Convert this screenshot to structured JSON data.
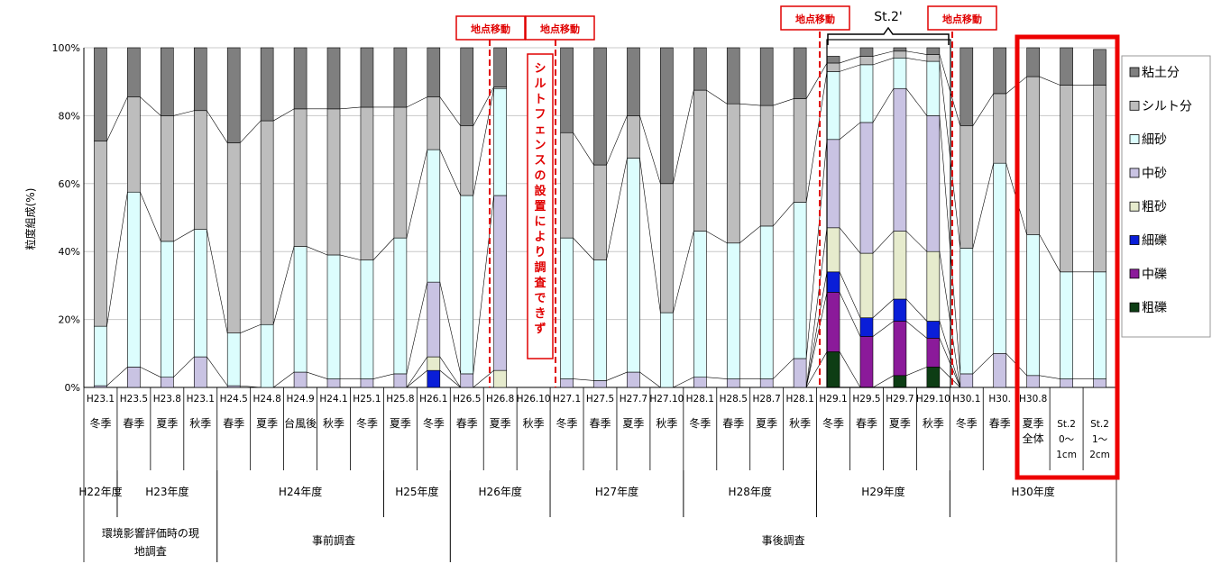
{
  "chart_data": {
    "type": "bar",
    "stacked": true,
    "percent_stacked": true,
    "ylabel": "粒度組成(%)",
    "ylim": [
      0,
      100
    ],
    "yticks": [
      "0%",
      "20%",
      "40%",
      "60%",
      "80%",
      "100%"
    ],
    "categories": [
      "H23.1",
      "H23.5",
      "H23.8",
      "H23.11",
      "H24.5",
      "H24.8",
      "H24.9",
      "H24.11",
      "H25.1",
      "H25.8",
      "H26.1",
      "H26.5",
      "H26.8",
      "H26.10",
      "H27.1",
      "H27.5",
      "H27.7",
      "H27.10",
      "H28.1",
      "H28.5",
      "H28.7",
      "H28.11",
      "H29.1",
      "H29.5",
      "H29.7",
      "H29.10",
      "H30.1",
      "H30.5",
      "H30.8",
      "St.2 0~1cm",
      "St.2 1~2cm"
    ],
    "tick_labels": [
      "H23.1",
      "H23.5",
      "H23.8",
      "H23.1",
      "H24.5",
      "H24.8",
      "H24.9",
      "H24.1",
      "H25.1",
      "H25.8",
      "H26.1",
      "H26.5",
      "H26.8",
      "H26.10",
      "H27.1",
      "H27.5",
      "H27.7",
      "H27.10",
      "H28.1",
      "H28.5",
      "H28.7",
      "H28.1",
      "H29.1",
      "H29.5",
      "H29.7",
      "H29.10",
      "H30.1",
      "H30.",
      "H30.8",
      "",
      ""
    ],
    "season_labels": [
      "冬季",
      "春季",
      "夏季",
      "秋季",
      "春季",
      "夏季",
      "台風後",
      "秋季",
      "冬季",
      "夏季",
      "冬季",
      "春季",
      "夏季",
      "秋季",
      "冬季",
      "春季",
      "夏季",
      "秋季",
      "冬季",
      "春季",
      "夏季",
      "秋季",
      "冬季",
      "春季",
      "夏季",
      "秋季",
      "冬季",
      "春季",
      "夏季 全体",
      "St.2 0～ 1cm",
      "St.2 1～ 2cm"
    ],
    "fiscal_years": [
      {
        "label": "H22年度",
        "start": 0,
        "end": 0
      },
      {
        "label": "H23年度",
        "start": 1,
        "end": 3
      },
      {
        "label": "H24年度",
        "start": 4,
        "end": 8
      },
      {
        "label": "H25年度",
        "start": 9,
        "end": 10
      },
      {
        "label": "H26年度",
        "start": 11,
        "end": 13
      },
      {
        "label": "H27年度",
        "start": 14,
        "end": 17
      },
      {
        "label": "H28年度",
        "start": 18,
        "end": 21
      },
      {
        "label": "H29年度",
        "start": 22,
        "end": 25
      },
      {
        "label": "H30年度",
        "start": 26,
        "end": 30
      }
    ],
    "survey_groups": [
      {
        "label": "環境影響評価時の現地調査",
        "start": 0,
        "end": 3
      },
      {
        "label": "事前調査",
        "start": 4,
        "end": 10
      },
      {
        "label": "事後調査",
        "start": 11,
        "end": 30
      }
    ],
    "series": [
      {
        "name": "粗礫",
        "color": "#0d3d14",
        "values": [
          0,
          0,
          0,
          0,
          0,
          0,
          0,
          0,
          0,
          0,
          0,
          0,
          0,
          0,
          0,
          0,
          0,
          0,
          0,
          0,
          0,
          0,
          10.5,
          0,
          3.5,
          6,
          0,
          0,
          0,
          0,
          0
        ]
      },
      {
        "name": "中礫",
        "color": "#8b1a9a",
        "values": [
          0,
          0,
          0,
          0,
          0,
          0,
          0,
          0,
          0,
          0,
          0,
          0,
          0,
          0,
          0,
          0,
          0,
          0,
          0,
          0,
          0,
          0,
          17.5,
          15,
          16,
          8.5,
          0,
          0,
          0,
          0,
          0
        ]
      },
      {
        "name": "細礫",
        "color": "#0a1ed8",
        "values": [
          0,
          0,
          0,
          0,
          0,
          0,
          0,
          0,
          0,
          0,
          5,
          0,
          0,
          0,
          0,
          0,
          0,
          0,
          0,
          0,
          0,
          0,
          6,
          5.5,
          6.5,
          5,
          0,
          0,
          0,
          0,
          0
        ]
      },
      {
        "name": "粗砂",
        "color": "#e6ebcd",
        "values": [
          0,
          0,
          0,
          0,
          0,
          0,
          0,
          0,
          0,
          0,
          4,
          0,
          5,
          0,
          0,
          0,
          0,
          0,
          0,
          0,
          0,
          0,
          13,
          19,
          20,
          20.5,
          0,
          0,
          0,
          0,
          0
        ]
      },
      {
        "name": "中砂",
        "color": "#c9c3e3",
        "values": [
          0.5,
          6,
          3,
          9,
          0.5,
          0,
          4.5,
          2.5,
          2.5,
          4,
          22,
          4,
          51.5,
          0,
          2.5,
          2,
          4.5,
          0,
          3,
          2.5,
          2.5,
          8.5,
          26,
          38.5,
          42,
          40,
          4,
          10,
          3.5,
          2.5,
          2.5
        ]
      },
      {
        "name": "細砂",
        "color": "#dcfdfd",
        "values": [
          17.5,
          51.5,
          40,
          37.5,
          15.5,
          18.5,
          37,
          36.5,
          35,
          40,
          39,
          52.5,
          31.5,
          0,
          41.5,
          35.5,
          63,
          22,
          43,
          40,
          45,
          46,
          20,
          17,
          9,
          16,
          37,
          56,
          41.5,
          31.5,
          31.5
        ]
      },
      {
        "name": "シルト分",
        "color": "#bdbdbd",
        "values": [
          54.5,
          28,
          37,
          35,
          56,
          60,
          40.5,
          43,
          45,
          38.5,
          15.5,
          20.5,
          0.5,
          0,
          31,
          28,
          12.5,
          38,
          41.5,
          41,
          35.5,
          30.5,
          2.5,
          2.5,
          2,
          2,
          36,
          20.5,
          46.5,
          55,
          55
        ]
      },
      {
        "name": "粘土分",
        "color": "#7f7f7f",
        "values": [
          27.5,
          14.5,
          20,
          18.5,
          28,
          21.5,
          18,
          18,
          17.5,
          17.5,
          14.5,
          23,
          11.5,
          0,
          25,
          34.5,
          20,
          40,
          12.5,
          16.5,
          17,
          15,
          2,
          2.5,
          1,
          2,
          23,
          13.5,
          8.5,
          11,
          10.5
        ]
      }
    ],
    "legend_position": "right",
    "annotations": {
      "moved_1": "地点移動",
      "moved_2": "地点移動",
      "moved_3": "地点移動",
      "moved_4": "地点移動",
      "st2": "St.2'",
      "fence_note": "シルトフェンスの設置により調査できず"
    }
  }
}
